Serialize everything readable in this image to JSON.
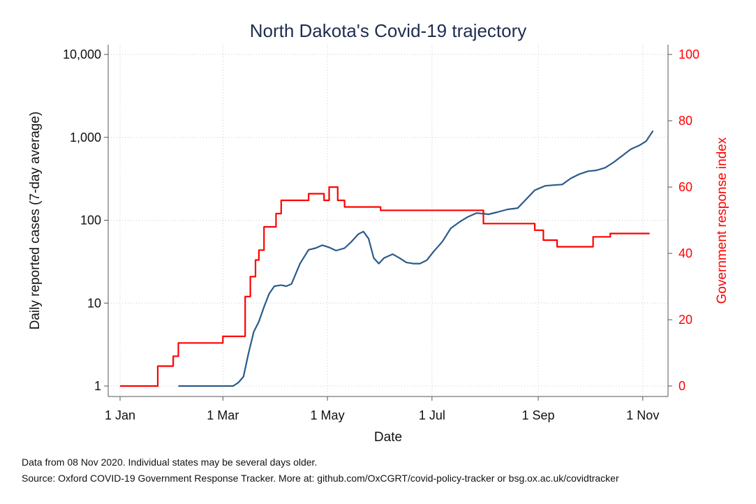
{
  "chart_data": {
    "type": "line",
    "title": "North Dakota's Covid-19 trajectory",
    "xlabel": "Date",
    "ylabel_left": "Daily reported cases (7-day average)",
    "ylabel_right": "Government response index",
    "x_tick_labels": [
      {
        "date": "2020-01-01",
        "label": "1 Jan"
      },
      {
        "date": "2020-03-01",
        "label": "1 Mar"
      },
      {
        "date": "2020-05-01",
        "label": "1 May"
      },
      {
        "date": "2020-07-01",
        "label": "1 Jul"
      },
      {
        "date": "2020-09-01",
        "label": "1 Sep"
      },
      {
        "date": "2020-11-01",
        "label": "1 Nov"
      }
    ],
    "xlim": [
      "2020-01-01",
      "2020-11-08"
    ],
    "y_left": {
      "scale": "log",
      "lim": [
        1,
        10000
      ],
      "ticks": [
        1,
        10,
        100,
        1000,
        10000
      ],
      "tick_labels": [
        "1",
        "10",
        "100",
        "1,000",
        "10,000"
      ]
    },
    "y_right": {
      "scale": "linear",
      "lim": [
        0,
        100
      ],
      "ticks": [
        0,
        20,
        40,
        60,
        80,
        100
      ],
      "tick_labels": [
        "0",
        "20",
        "40",
        "60",
        "80",
        "100"
      ]
    },
    "grid": true,
    "series": [
      {
        "axis": "left",
        "color": "#2a5b8a",
        "points": [
          [
            "2020-02-04",
            1
          ],
          [
            "2020-03-07",
            1
          ],
          [
            "2020-03-10",
            1.1
          ],
          [
            "2020-03-13",
            1.3
          ],
          [
            "2020-03-16",
            2.5
          ],
          [
            "2020-03-19",
            4.5
          ],
          [
            "2020-03-22",
            6
          ],
          [
            "2020-03-25",
            9
          ],
          [
            "2020-03-28",
            13
          ],
          [
            "2020-03-31",
            16
          ],
          [
            "2020-04-04",
            16.5
          ],
          [
            "2020-04-07",
            16
          ],
          [
            "2020-04-10",
            17
          ],
          [
            "2020-04-15",
            30
          ],
          [
            "2020-04-20",
            44
          ],
          [
            "2020-04-24",
            46
          ],
          [
            "2020-04-28",
            50
          ],
          [
            "2020-05-02",
            47
          ],
          [
            "2020-05-06",
            43
          ],
          [
            "2020-05-11",
            46
          ],
          [
            "2020-05-15",
            55
          ],
          [
            "2020-05-19",
            68
          ],
          [
            "2020-05-22",
            73
          ],
          [
            "2020-05-25",
            60
          ],
          [
            "2020-05-28",
            35
          ],
          [
            "2020-05-31",
            30
          ],
          [
            "2020-06-03",
            35
          ],
          [
            "2020-06-08",
            39
          ],
          [
            "2020-06-12",
            35
          ],
          [
            "2020-06-16",
            31
          ],
          [
            "2020-06-20",
            30
          ],
          [
            "2020-06-24",
            30
          ],
          [
            "2020-06-28",
            33
          ],
          [
            "2020-07-02",
            42
          ],
          [
            "2020-07-07",
            55
          ],
          [
            "2020-07-12",
            80
          ],
          [
            "2020-07-17",
            95
          ],
          [
            "2020-07-22",
            110
          ],
          [
            "2020-07-27",
            122
          ],
          [
            "2020-07-31",
            120
          ],
          [
            "2020-08-03",
            118
          ],
          [
            "2020-08-08",
            125
          ],
          [
            "2020-08-14",
            135
          ],
          [
            "2020-08-20",
            140
          ],
          [
            "2020-08-25",
            180
          ],
          [
            "2020-08-30",
            230
          ],
          [
            "2020-09-05",
            260
          ],
          [
            "2020-09-10",
            265
          ],
          [
            "2020-09-15",
            270
          ],
          [
            "2020-09-20",
            320
          ],
          [
            "2020-09-25",
            360
          ],
          [
            "2020-09-30",
            390
          ],
          [
            "2020-10-05",
            400
          ],
          [
            "2020-10-10",
            430
          ],
          [
            "2020-10-15",
            500
          ],
          [
            "2020-10-20",
            600
          ],
          [
            "2020-10-25",
            720
          ],
          [
            "2020-10-30",
            800
          ],
          [
            "2020-11-03",
            900
          ],
          [
            "2020-11-07",
            1200
          ]
        ]
      },
      {
        "axis": "right",
        "color": "#ff0000",
        "step": true,
        "points": [
          [
            "2020-01-01",
            0
          ],
          [
            "2020-01-23",
            6
          ],
          [
            "2020-02-01",
            9
          ],
          [
            "2020-02-04",
            13
          ],
          [
            "2020-03-01",
            15
          ],
          [
            "2020-03-14",
            27
          ],
          [
            "2020-03-17",
            33
          ],
          [
            "2020-03-20",
            38
          ],
          [
            "2020-03-22",
            41
          ],
          [
            "2020-03-25",
            48
          ],
          [
            "2020-04-01",
            52
          ],
          [
            "2020-04-04",
            56
          ],
          [
            "2020-04-20",
            58
          ],
          [
            "2020-04-29",
            56
          ],
          [
            "2020-05-02",
            60
          ],
          [
            "2020-05-07",
            56
          ],
          [
            "2020-05-11",
            54
          ],
          [
            "2020-06-01",
            53
          ],
          [
            "2020-07-31",
            49
          ],
          [
            "2020-08-30",
            47
          ],
          [
            "2020-09-04",
            44
          ],
          [
            "2020-09-12",
            42
          ],
          [
            "2020-10-03",
            45
          ],
          [
            "2020-10-13",
            46
          ],
          [
            "2020-11-05",
            46
          ]
        ]
      }
    ]
  },
  "notes": {
    "line1": "Data from 08 Nov 2020. Individual states may be several days older.",
    "line2": "Source: Oxford COVID-19 Government Response Tracker. More at: github.com/OxCGRT/covid-policy-tracker or bsg.ox.ac.uk/covidtracker"
  }
}
